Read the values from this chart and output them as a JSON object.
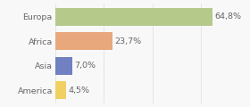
{
  "categories": [
    "Europa",
    "Africa",
    "Asia",
    "America"
  ],
  "values": [
    64.8,
    23.7,
    7.0,
    4.5
  ],
  "labels": [
    "64,8%",
    "23,7%",
    "7,0%",
    "4,5%"
  ],
  "bar_colors": [
    "#b5c98a",
    "#e8a87c",
    "#7080c0",
    "#f0d060"
  ],
  "background_color": "#f8f8f8",
  "xlim": [
    0,
    78
  ],
  "bar_height": 0.72,
  "label_fontsize": 6.8,
  "tick_fontsize": 6.8,
  "text_color": "#666666",
  "grid_color": "#dddddd"
}
